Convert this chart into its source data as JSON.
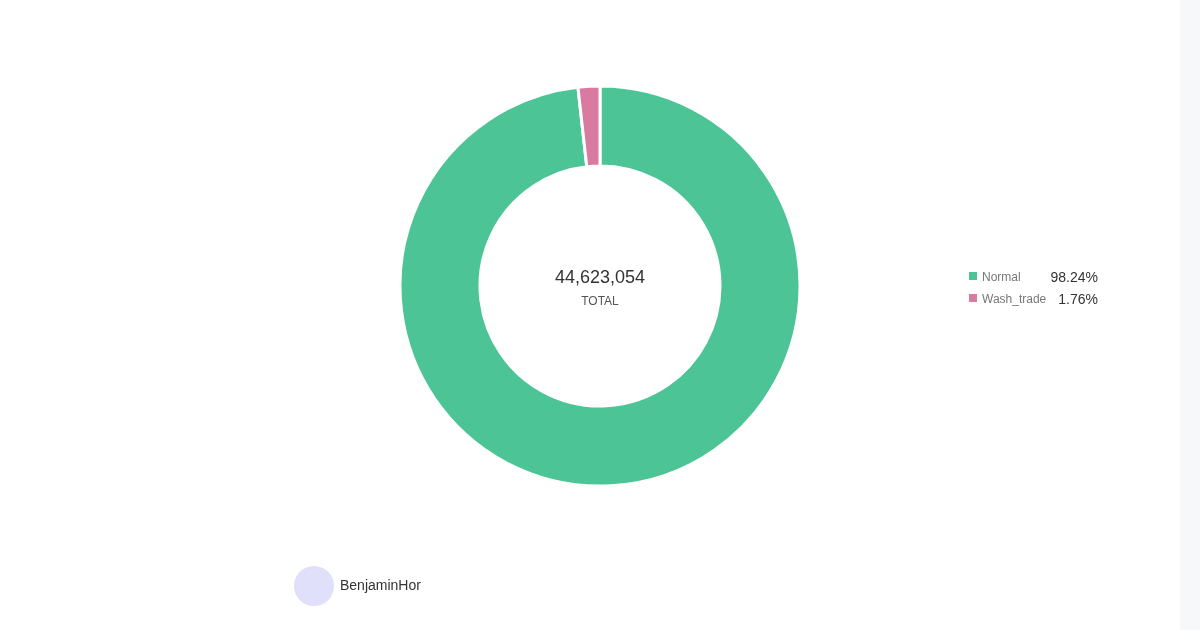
{
  "chart_data": {
    "type": "donut",
    "categories": [
      "Normal",
      "Wash_trade"
    ],
    "values": [
      98.24,
      1.76
    ],
    "colors": [
      "#4cc495",
      "#d97aa0"
    ],
    "value_labels": [
      "98.24%",
      "1.76%"
    ],
    "legend": "right",
    "annotations": [
      "44,623,054",
      "TOTAL",
      "BenjaminHor"
    ]
  }
}
